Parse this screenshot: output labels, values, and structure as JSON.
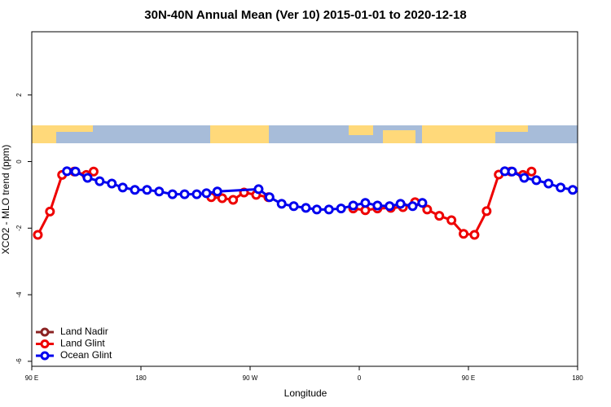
{
  "chart_data": {
    "type": "line",
    "title": "30N-40N Annual Mean (Ver 10)   2015-01-01 to 2020-12-18",
    "xlabel": "Longitude",
    "ylabel": "XCO2 - MLO trend (ppm)",
    "xlim": [
      90,
      540
    ],
    "ylim": [
      -6.15,
      3.9
    ],
    "xticks": [
      {
        "value": 90,
        "label": "90 E"
      },
      180,
      {
        "value": 270,
        "label": "90 W"
      },
      {
        "value": 360,
        "label": "0"
      },
      {
        "value": 450,
        "label": "90 E"
      },
      {
        "value": 540,
        "label": "180"
      }
    ],
    "yticks": [
      -6,
      -4,
      -2,
      0,
      2
    ],
    "legend": "bottom-left",
    "series": [
      {
        "name": "Land Nadir",
        "color": "#8b2323",
        "x": [],
        "values": []
      },
      {
        "name": "Land Glint",
        "color": "#ee0000",
        "x": [
          95,
          105,
          115,
          125,
          135,
          141,
          null,
          238,
          247,
          256,
          265,
          275,
          285,
          null,
          355,
          365,
          375,
          386,
          396,
          406,
          416,
          426,
          436,
          446,
          455,
          465,
          475,
          485,
          495,
          502
        ],
        "values": [
          -2.2,
          -1.5,
          -0.4,
          -0.3,
          -0.4,
          -0.3,
          null,
          -1.07,
          -1.1,
          -1.15,
          -0.93,
          -1.0,
          -1.07,
          null,
          -1.41,
          -1.46,
          -1.41,
          -1.39,
          -1.37,
          -1.22,
          -1.44,
          -1.63,
          -1.76,
          -2.17,
          -2.2,
          -1.49,
          -0.39,
          -0.3,
          -0.4,
          -0.3
        ]
      },
      {
        "name": "Ocean Glint",
        "color": "#0000ee",
        "x": [
          119,
          126,
          136,
          146,
          156,
          165,
          175,
          185,
          195,
          206,
          216,
          226,
          234,
          243,
          277,
          286,
          296,
          306,
          316,
          325,
          335,
          345,
          355,
          365,
          375,
          385,
          394,
          404,
          412,
          null,
          480,
          486,
          496,
          506,
          516,
          526,
          536
        ],
        "values": [
          -0.29,
          -0.3,
          -0.49,
          -0.59,
          -0.66,
          -0.78,
          -0.85,
          -0.85,
          -0.9,
          -0.98,
          -0.98,
          -0.98,
          -0.95,
          -0.9,
          -0.83,
          -1.07,
          -1.27,
          -1.34,
          -1.39,
          -1.44,
          -1.44,
          -1.41,
          -1.32,
          -1.24,
          -1.32,
          -1.34,
          -1.27,
          -1.34,
          -1.24,
          null,
          -0.29,
          -0.3,
          -0.49,
          -0.56,
          -0.66,
          -0.78,
          -0.85
        ]
      }
    ]
  }
}
